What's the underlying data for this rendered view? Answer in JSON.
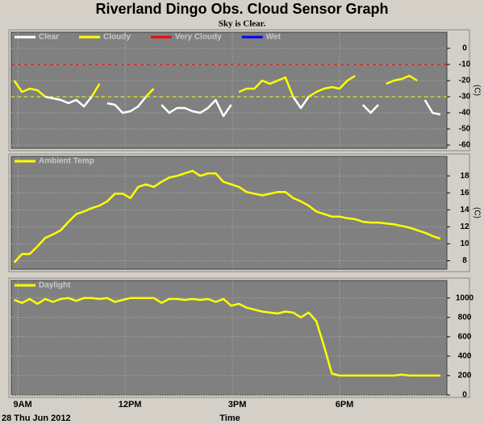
{
  "title": "Riverland Dingo Obs. Cloud Sensor Graph",
  "subtitle": "Sky is Clear.",
  "xlabel": "Time",
  "date": "28 Thu Jun 2012",
  "chart_data": [
    {
      "type": "line",
      "ylabel": "(C)",
      "legend": "upper left",
      "grid": true,
      "xlim": [
        529,
        1260
      ],
      "xticks": [
        540,
        720,
        900,
        1080
      ],
      "ylim": [
        -62,
        10
      ],
      "yticks": [
        0,
        -10,
        -20,
        -30,
        -40,
        -50,
        -60
      ],
      "thresholds": [
        {
          "value": -10,
          "color": "#ff0000"
        },
        {
          "value": -30,
          "color": "#ffff00"
        }
      ],
      "x": [
        534,
        547,
        560,
        573,
        586,
        599,
        612,
        625,
        638,
        651,
        664,
        677,
        690,
        703,
        716,
        729,
        742,
        755,
        768,
        781,
        794,
        807,
        820,
        833,
        846,
        859,
        872,
        885,
        898,
        911,
        924,
        937,
        950,
        963,
        976,
        989,
        1002,
        1015,
        1028,
        1041,
        1054,
        1067,
        1080,
        1093,
        1106,
        1119,
        1132,
        1145,
        1158,
        1171,
        1184,
        1197,
        1210,
        1223,
        1236,
        1249
      ],
      "series": [
        {
          "name": "Clear",
          "color": "#ffffff",
          "values": [
            null,
            null,
            null,
            null,
            -30,
            -31,
            -32,
            -34,
            -32,
            -36,
            -30,
            null,
            -34,
            -35,
            -40,
            -39,
            -36,
            -30,
            null,
            -35,
            -40,
            -37,
            -37,
            -39,
            -40,
            -37,
            -32,
            -42,
            -35,
            null,
            null,
            null,
            null,
            null,
            null,
            null,
            -30,
            -37,
            -30,
            null,
            null,
            null,
            null,
            null,
            null,
            -35,
            -40,
            -35,
            null,
            null,
            null,
            null,
            null,
            -32,
            -40,
            -41
          ]
        },
        {
          "name": "Cloudy",
          "color": "#ffff00",
          "values": [
            -20,
            -27,
            -25,
            -26,
            -30,
            null,
            null,
            null,
            null,
            null,
            -30,
            -22,
            null,
            null,
            null,
            null,
            null,
            -30,
            -25,
            null,
            null,
            null,
            null,
            null,
            null,
            null,
            null,
            null,
            null,
            -27,
            -25,
            -25,
            -20,
            -22,
            -20,
            -18,
            -30,
            null,
            -30,
            -27,
            -25,
            -24,
            -25,
            -20,
            -17,
            null,
            null,
            null,
            -22,
            -20,
            -19,
            -17,
            -20,
            null,
            null,
            null
          ]
        },
        {
          "name": "Very Cloudy",
          "color": "#ff0000",
          "values": [
            null,
            null,
            null,
            null,
            null,
            null,
            null,
            null,
            null,
            null,
            null,
            null,
            null,
            null,
            null,
            null,
            null,
            null,
            null,
            null,
            null,
            null,
            null,
            null,
            null,
            null,
            null,
            null,
            null,
            null,
            null,
            null,
            null,
            null,
            null,
            null,
            null,
            null,
            null,
            null,
            null,
            null,
            null,
            null,
            null,
            null,
            null,
            null,
            null,
            null,
            null,
            null,
            null,
            null,
            null,
            null
          ]
        },
        {
          "name": "Wet",
          "color": "#0000ff",
          "values": [
            null,
            null,
            null,
            null,
            null,
            null,
            null,
            null,
            null,
            null,
            null,
            null,
            null,
            null,
            null,
            null,
            null,
            null,
            null,
            null,
            null,
            null,
            null,
            null,
            null,
            null,
            null,
            null,
            null,
            null,
            null,
            null,
            null,
            null,
            null,
            null,
            null,
            null,
            null,
            null,
            null,
            null,
            null,
            null,
            null,
            null,
            null,
            null,
            null,
            null,
            null,
            null,
            null,
            null,
            null,
            null
          ]
        }
      ]
    },
    {
      "type": "line",
      "ylabel": "(C)",
      "legend": "upper left",
      "grid": true,
      "xlim": [
        529,
        1260
      ],
      "xticks": [
        540,
        720,
        900,
        1080
      ],
      "ylim": [
        7,
        20.3
      ],
      "yticks": [
        8,
        10,
        12,
        14,
        16,
        18
      ],
      "x": [
        534,
        547,
        560,
        573,
        586,
        599,
        612,
        625,
        638,
        651,
        664,
        677,
        690,
        703,
        716,
        729,
        742,
        755,
        768,
        781,
        794,
        807,
        820,
        833,
        846,
        859,
        872,
        885,
        898,
        911,
        924,
        937,
        950,
        963,
        976,
        989,
        1002,
        1015,
        1028,
        1041,
        1054,
        1067,
        1080,
        1093,
        1106,
        1119,
        1132,
        1145,
        1158,
        1171,
        1184,
        1197,
        1210,
        1223,
        1236,
        1249
      ],
      "series": [
        {
          "name": "Ambient Temp",
          "color": "#ffff00",
          "values": [
            7.8,
            8.8,
            8.8,
            9.7,
            10.7,
            11.1,
            11.6,
            12.6,
            13.5,
            13.8,
            14.2,
            14.5,
            15,
            15.9,
            15.9,
            15.4,
            16.7,
            17,
            16.7,
            17.3,
            17.8,
            18,
            18.3,
            18.6,
            18,
            18.3,
            18.3,
            17.3,
            17,
            16.7,
            16.1,
            15.9,
            15.7,
            15.9,
            16.1,
            16.1,
            15.4,
            15,
            14.5,
            13.8,
            13.5,
            13.2,
            13.2,
            13,
            12.9,
            12.6,
            12.5,
            12.5,
            12.4,
            12.3,
            12.1,
            11.9,
            11.6,
            11.3,
            10.9,
            10.6
          ]
        }
      ]
    },
    {
      "type": "line",
      "legend": "upper left",
      "grid": true,
      "xlim": [
        529,
        1260
      ],
      "xticks": [
        {
          "value": 540,
          "label": "9AM"
        },
        {
          "value": 720,
          "label": "12PM"
        },
        {
          "value": 900,
          "label": "3PM"
        },
        {
          "value": 1080,
          "label": "6PM"
        }
      ],
      "ylim": [
        0,
        1180
      ],
      "yticks": [
        0,
        200,
        400,
        600,
        800,
        1000
      ],
      "x": [
        534,
        547,
        560,
        573,
        586,
        599,
        612,
        625,
        638,
        651,
        664,
        677,
        690,
        703,
        716,
        729,
        742,
        755,
        768,
        781,
        794,
        807,
        820,
        833,
        846,
        859,
        872,
        885,
        898,
        911,
        924,
        937,
        950,
        963,
        976,
        989,
        1002,
        1015,
        1028,
        1041,
        1054,
        1067,
        1080,
        1093,
        1106,
        1119,
        1132,
        1145,
        1158,
        1171,
        1184,
        1197,
        1210,
        1223,
        1236,
        1249
      ],
      "series": [
        {
          "name": "Daylight",
          "color": "#ffff00",
          "values": [
            980,
            950,
            990,
            940,
            990,
            960,
            990,
            1000,
            970,
            1000,
            1000,
            990,
            1000,
            960,
            980,
            1000,
            1000,
            1000,
            1000,
            950,
            990,
            990,
            980,
            990,
            980,
            990,
            960,
            990,
            920,
            940,
            900,
            880,
            860,
            850,
            840,
            860,
            850,
            800,
            850,
            760,
            500,
            220,
            200,
            200,
            200,
            200,
            200,
            200,
            200,
            200,
            210,
            200,
            200,
            200,
            200,
            200
          ]
        }
      ]
    }
  ]
}
